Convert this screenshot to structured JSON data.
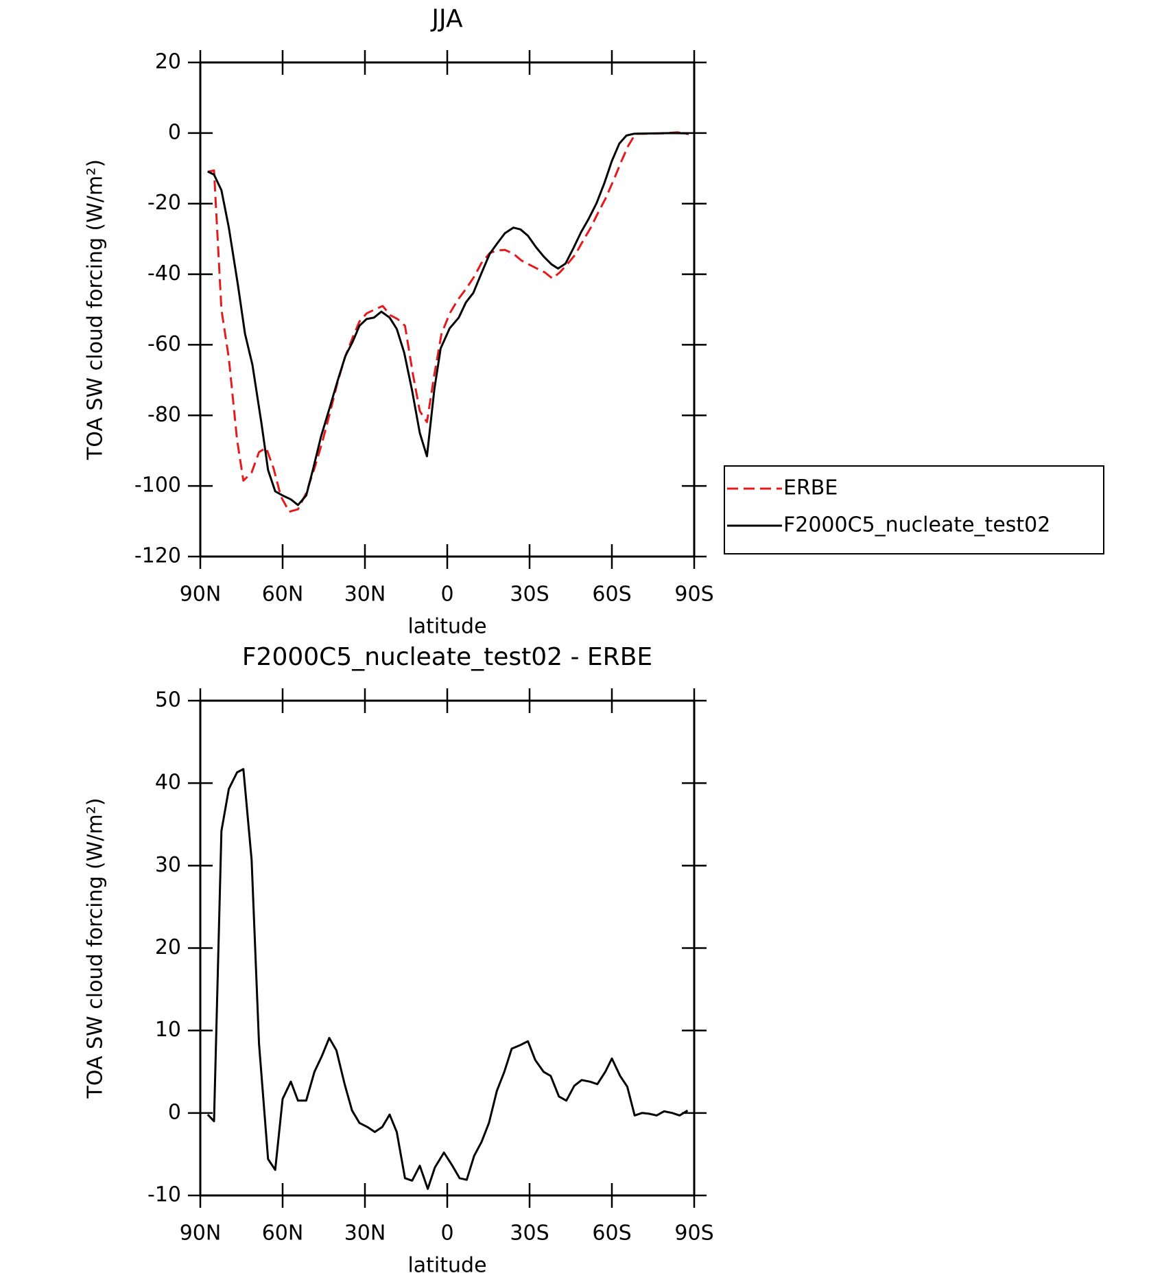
{
  "chart_data": [
    {
      "type": "line",
      "title": "JJA",
      "xlabel": "latitude",
      "ylabel": "TOA SW cloud forcing (W/m²)",
      "xlim": [
        90,
        -90
      ],
      "xticks": [
        {
          "value": 90,
          "label": "90N"
        },
        {
          "value": 60,
          "label": "60N"
        },
        {
          "value": 30,
          "label": "30N"
        },
        0,
        {
          "value": -30,
          "label": "30S"
        },
        {
          "value": -60,
          "label": "60S"
        },
        {
          "value": -90,
          "label": "90S"
        }
      ],
      "ylim": [
        -120,
        20
      ],
      "yticks": [
        -120,
        -100,
        -80,
        -60,
        -40,
        -20,
        0,
        20
      ],
      "legend": "right",
      "series": [
        {
          "name": "ERBE",
          "color": "#e41a1c",
          "dashed": true,
          "x": [
            87.3,
            85,
            82.3,
            79.6,
            76.6,
            74.3,
            71.3,
            68.6,
            66,
            63.3,
            60.6,
            57.6,
            54.4,
            51.4,
            48.4,
            45.7,
            43,
            40,
            37.4,
            34.5,
            32,
            29.4,
            26.4,
            23.5,
            20.8,
            18.1,
            15.4,
            12.5,
            10,
            7.4,
            4.7,
            2.1,
            -0.9,
            -3.9,
            -6.8,
            -9.8,
            -12.5,
            -15.5,
            -18.1,
            -21,
            -24.1,
            -27,
            -29.7,
            -32.7,
            -35.6,
            -38.3,
            -41,
            -43.7,
            -46.6,
            -49.3,
            -52.3,
            -54.9,
            -57.6,
            -60.6,
            -63.3,
            -65.9,
            -68.6,
            -71.6,
            -78,
            -84,
            -88
          ],
          "values": [
            -11,
            -10.6,
            -50,
            -63.8,
            -86.9,
            -98.5,
            -96.2,
            -90.4,
            -89.2,
            -95,
            -103,
            -107.3,
            -106.6,
            -102,
            -95,
            -88,
            -80,
            -70.7,
            -63.8,
            -58,
            -53.4,
            -51.1,
            -50,
            -49,
            -51.6,
            -52.7,
            -54.6,
            -68.4,
            -78.8,
            -81.9,
            -68.4,
            -56.9,
            -51.1,
            -47.2,
            -44.2,
            -40.7,
            -36.8,
            -34,
            -33.3,
            -33.1,
            -34.2,
            -36.1,
            -37.2,
            -38.4,
            -39.5,
            -41.2,
            -39.5,
            -37.2,
            -34.5,
            -30.8,
            -26.8,
            -22.7,
            -18.7,
            -13.4,
            -8.3,
            -3.7,
            -0.2,
            -0.2,
            -0.1,
            0.2,
            -0.3
          ]
        },
        {
          "name": "F2000C5_nucleate_test02",
          "color": "#000000",
          "dashed": false,
          "x": [
            87.3,
            85,
            82.3,
            79.6,
            76.3,
            73.7,
            71,
            67.7,
            65.3,
            62.7,
            60,
            57,
            54.4,
            51.4,
            48.7,
            46,
            42.8,
            40,
            37.1,
            34.5,
            32,
            29.4,
            26.7,
            24,
            21,
            18.4,
            15.7,
            12.8,
            10,
            7.4,
            4.7,
            2.4,
            -0.9,
            -4.2,
            -6.8,
            -9.5,
            -12.8,
            -15.5,
            -18.1,
            -21,
            -24.1,
            -26.7,
            -29.4,
            -32.4,
            -35.3,
            -38,
            -40.4,
            -43.1,
            -46,
            -48.7,
            -51.4,
            -54.4,
            -57.3,
            -60,
            -62.7,
            -65.3,
            -68,
            -75,
            -82,
            -88
          ],
          "values": [
            -10.9,
            -11.8,
            -16.2,
            -26.8,
            -43,
            -56.9,
            -65.7,
            -82.3,
            -95.5,
            -101.5,
            -102.7,
            -103.8,
            -105.4,
            -102.7,
            -94.6,
            -86,
            -77.7,
            -70.3,
            -63.1,
            -59.2,
            -54.6,
            -52.7,
            -52.3,
            -50.6,
            -52.3,
            -55.5,
            -62.2,
            -73,
            -85,
            -91.6,
            -72.6,
            -61,
            -55.3,
            -52.3,
            -48,
            -45.3,
            -39.1,
            -34.2,
            -31.4,
            -28.4,
            -26.8,
            -27.3,
            -29.1,
            -32.4,
            -35.1,
            -37.2,
            -38.4,
            -37,
            -32.6,
            -28.2,
            -24.5,
            -19.9,
            -14.1,
            -7.9,
            -3,
            -0.7,
            -0.2,
            -0.1,
            0,
            -0.1
          ]
        }
      ]
    },
    {
      "type": "line",
      "title": "F2000C5_nucleate_test02 - ERBE",
      "xlabel": "latitude",
      "ylabel": "TOA SW cloud forcing (W/m²)",
      "xlim": [
        90,
        -90
      ],
      "xticks": [
        {
          "value": 90,
          "label": "90N"
        },
        {
          "value": 60,
          "label": "60N"
        },
        {
          "value": 30,
          "label": "30N"
        },
        0,
        {
          "value": -30,
          "label": "30S"
        },
        {
          "value": -60,
          "label": "60S"
        },
        {
          "value": -90,
          "label": "90S"
        }
      ],
      "ylim": [
        -10,
        50
      ],
      "yticks": [
        -10,
        0,
        10,
        20,
        30,
        40,
        50
      ],
      "color": "#000000",
      "x": [
        87.3,
        85,
        82.3,
        79.6,
        76.6,
        74.3,
        71.3,
        68.6,
        65.3,
        62.7,
        60,
        57,
        54.4,
        51.4,
        48.4,
        45.7,
        43,
        40.4,
        37.4,
        34.7,
        32,
        29.1,
        26.4,
        23.7,
        21,
        18.4,
        15.4,
        12.8,
        10,
        7.1,
        4.5,
        1.2,
        -1.5,
        -4.5,
        -7.1,
        -9.8,
        -12.5,
        -15.2,
        -18.1,
        -20.8,
        -23.5,
        -26.4,
        -29.4,
        -32.1,
        -35.1,
        -37.7,
        -40.7,
        -43.4,
        -46.3,
        -49,
        -52,
        -54.7,
        -57.6,
        -60,
        -63,
        -65.6,
        -68.3,
        -71,
        -73.7,
        -76.3,
        -79,
        -82,
        -84.7,
        -87.6
      ],
      "values": [
        -0.2,
        -1,
        34.2,
        39.3,
        41.3,
        41.7,
        30.7,
        8.4,
        -5.6,
        -6.9,
        1.7,
        3.8,
        1.5,
        1.5,
        5,
        6.9,
        9.1,
        7.6,
        3.5,
        0.3,
        -1.2,
        -1.7,
        -2.3,
        -1.7,
        -0.2,
        -2.3,
        -7.9,
        -8.2,
        -6.4,
        -9.2,
        -6.6,
        -4.8,
        -6.2,
        -7.9,
        -8.1,
        -5.2,
        -3.5,
        -1.2,
        2.7,
        5,
        7.8,
        8.2,
        8.7,
        6.4,
        5,
        4.5,
        2,
        1.5,
        3.3,
        4,
        3.8,
        3.5,
        5,
        6.6,
        4.5,
        3.2,
        -0.3,
        0,
        -0.1,
        -0.3,
        0.2,
        0,
        -0.3,
        0.3
      ]
    }
  ]
}
